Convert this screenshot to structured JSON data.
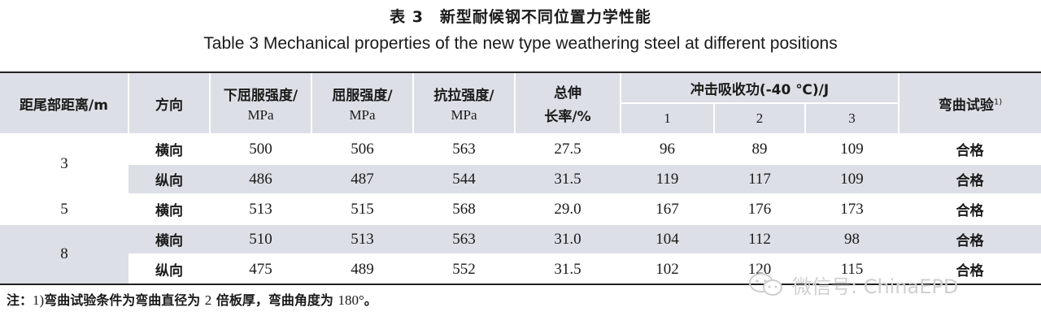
{
  "caption": {
    "cn": "表 3　新型耐候钢不同位置力学性能",
    "en": "Table 3    Mechanical properties of the new type weathering steel at different positions"
  },
  "table": {
    "headers": {
      "distance": "距尾部距离/m",
      "direction": "方向",
      "lower_yield": "下屈服强度/",
      "yield": "屈服强度/",
      "tensile": "抗拉强度/",
      "unit": "MPa",
      "elongation_l1": "总伸",
      "elongation_l2": "长率/%",
      "impact": "冲击吸收功(-40 ℃)/J",
      "impact_sub": [
        "1",
        "2",
        "3"
      ],
      "bend": "弯曲试验",
      "bend_sup": "1)"
    },
    "rows": [
      {
        "distance": "3",
        "direction": "横向",
        "lower_yield": "500",
        "yield": "506",
        "tensile": "563",
        "elongation": "27.5",
        "i1": "96",
        "i2": "89",
        "i3": "109",
        "bend": "合格"
      },
      {
        "distance": "",
        "direction": "纵向",
        "lower_yield": "486",
        "yield": "487",
        "tensile": "544",
        "elongation": "31.5",
        "i1": "119",
        "i2": "117",
        "i3": "109",
        "bend": "合格"
      },
      {
        "distance": "5",
        "direction": "横向",
        "lower_yield": "513",
        "yield": "515",
        "tensile": "568",
        "elongation": "29.0",
        "i1": "167",
        "i2": "176",
        "i3": "173",
        "bend": "合格"
      },
      {
        "distance": "8",
        "direction": "横向",
        "lower_yield": "510",
        "yield": "513",
        "tensile": "563",
        "elongation": "31.0",
        "i1": "104",
        "i2": "112",
        "i3": "98",
        "bend": "合格"
      },
      {
        "distance": "",
        "direction": "纵向",
        "lower_yield": "475",
        "yield": "489",
        "tensile": "552",
        "elongation": "31.5",
        "i1": "102",
        "i2": "120",
        "i3": "115",
        "bend": "合格"
      }
    ]
  },
  "note": {
    "prefix": "注：",
    "num": "1)",
    "text1": "弯曲试验条件为弯曲直径为",
    "val1": "2",
    "text2": "倍板厚，弯曲角度为",
    "val2": "180°",
    "end": "。"
  },
  "watermark": {
    "icon": "wechat-icon",
    "text": "微信号: ChinaEPD"
  }
}
